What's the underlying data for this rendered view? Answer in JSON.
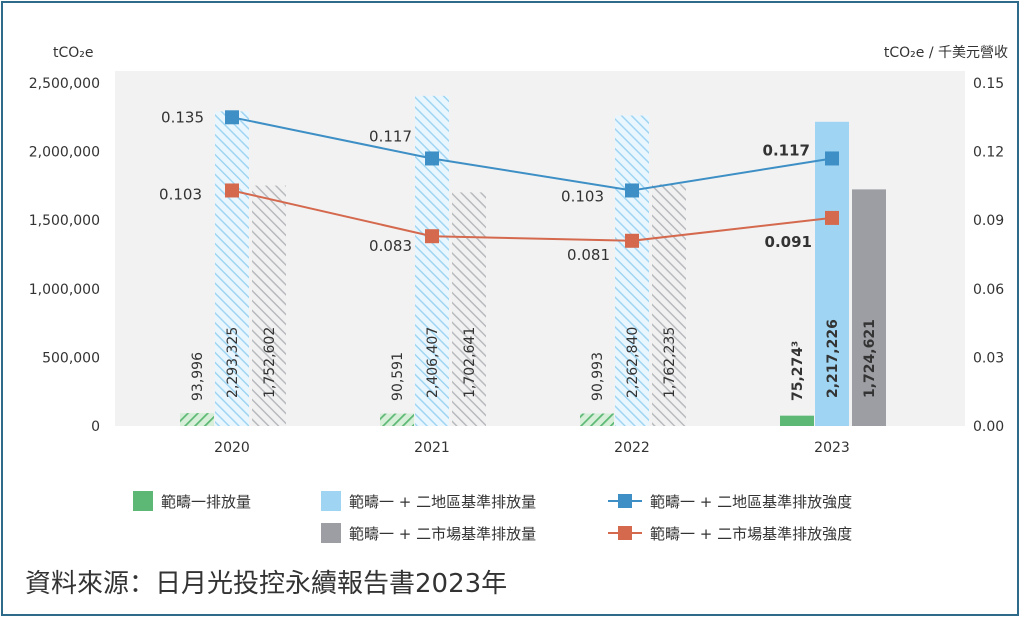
{
  "chart_data": {
    "type": "bar",
    "left_axis_unit": "tCO₂e",
    "right_axis_unit": "tCO₂e / 千美元營收",
    "categories": [
      "2020",
      "2021",
      "2022",
      "2023"
    ],
    "ylim": [
      0,
      2500000
    ],
    "yticks": [
      "0",
      "500,000",
      "1,000,000",
      "1,500,000",
      "2,000,000",
      "2,500,000"
    ],
    "ylim_right": [
      0,
      0.15
    ],
    "yticks_right": [
      "0.00",
      "0.03",
      "0.06",
      "0.09",
      "0.12",
      "0.15"
    ],
    "bar_series": [
      {
        "name": "範疇一排放量",
        "color": "#5cb874",
        "values": [
          93996,
          90591,
          90993,
          75274
        ],
        "labels": [
          "93,996",
          "90,591",
          "90,993",
          "75,274³"
        ]
      },
      {
        "name": "範疇一 + 二地區基準排放量",
        "color": "#9fd5f2",
        "values": [
          2293325,
          2406407,
          2262840,
          2217226
        ],
        "labels": [
          "2,293,325",
          "2,406,407",
          "2,262,840",
          "2,217,226"
        ]
      },
      {
        "name": "範疇一 + 二市場基準排放量",
        "color": "#9c9ea3",
        "values": [
          1752602,
          1702641,
          1762235,
          1724621
        ],
        "labels": [
          "1,752,602",
          "1,702,641",
          "1,762,235",
          "1,724,621"
        ]
      }
    ],
    "line_series": [
      {
        "name": "範疇一 + 二地區基準排放強度",
        "color": "#3d8fc5",
        "values": [
          0.135,
          0.117,
          0.103,
          0.117
        ],
        "labels": [
          "0.135",
          "0.117",
          "0.103",
          "0.117"
        ]
      },
      {
        "name": "範疇一 + 二市場基準排放強度",
        "color": "#d4694e",
        "values": [
          0.103,
          0.083,
          0.081,
          0.091
        ],
        "labels": [
          "0.103",
          "0.083",
          "0.081",
          "0.091"
        ]
      }
    ],
    "hatched_years": [
      "2020",
      "2021",
      "2022"
    ],
    "legend_position": "bottom",
    "grid": false
  },
  "source": "資料來源：日月光投控永續報告書2023年"
}
